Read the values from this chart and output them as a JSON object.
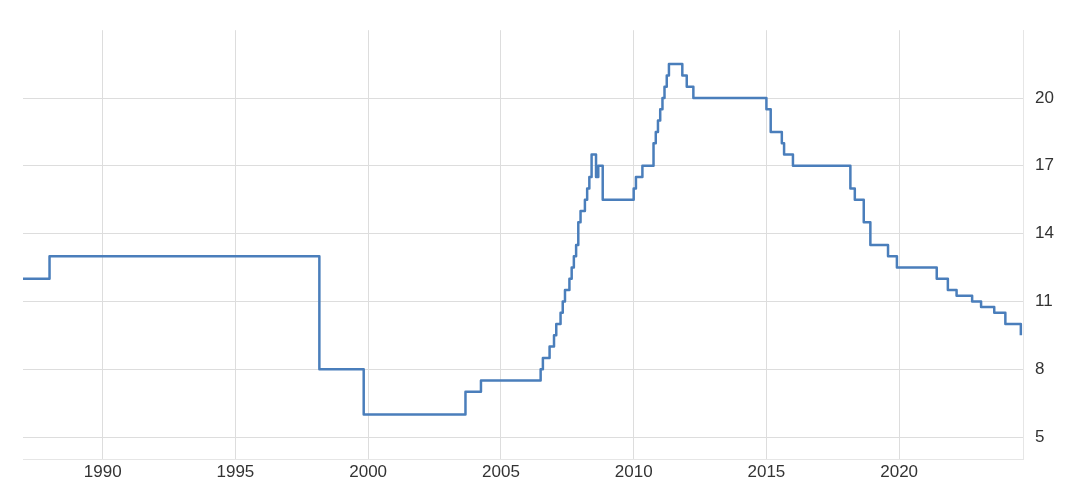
{
  "chart_data": {
    "type": "step",
    "x": [
      "1987-01",
      "1988-01",
      "1998-03",
      "1999-11",
      "2003-09",
      "2004-04",
      "2006-07",
      "2006-08",
      "2006-11",
      "2007-01",
      "2007-02",
      "2007-04",
      "2007-05",
      "2007-06",
      "2007-08",
      "2007-09",
      "2007-10",
      "2007-11",
      "2007-12",
      "2008-01",
      "2008-03",
      "2008-04",
      "2008-05",
      "2008-06",
      "2008-08",
      "2008-09",
      "2008-11",
      "2010-01",
      "2010-02",
      "2010-05",
      "2010-10",
      "2010-11",
      "2010-12",
      "2011-01",
      "2011-02",
      "2011-03",
      "2011-04",
      "2011-05",
      "2011-11",
      "2012-01",
      "2012-04",
      "2015-01",
      "2015-03",
      "2015-08",
      "2015-09",
      "2016-01",
      "2018-03",
      "2018-05",
      "2018-09",
      "2018-12",
      "2019-08",
      "2019-12",
      "2021-06",
      "2021-11",
      "2022-03",
      "2022-10",
      "2023-02",
      "2023-08",
      "2024-01",
      "2024-08"
    ],
    "series": [
      {
        "color": "#4a7ebb",
        "values": [
          12,
          13,
          8,
          6,
          7,
          7.5,
          8,
          8.5,
          9,
          9.5,
          10,
          10.5,
          11,
          11.5,
          12,
          12.5,
          13,
          13.5,
          14.5,
          15,
          15.5,
          16,
          16.5,
          17.5,
          16.5,
          17,
          15.5,
          16,
          16.5,
          17,
          18,
          18.5,
          19,
          19.5,
          20,
          20.5,
          21,
          21.5,
          21,
          20.5,
          20,
          19.5,
          18.5,
          18,
          17.5,
          17,
          16,
          15.5,
          14.5,
          13.5,
          13,
          12.5,
          12,
          11.5,
          11.25,
          11,
          10.75,
          10.5,
          10,
          9.5
        ]
      }
    ],
    "xlim": [
      "1987-01",
      "2024-09"
    ],
    "xticks": [
      "1990",
      "1995",
      "2000",
      "2005",
      "2010",
      "2015",
      "2020"
    ],
    "ylim": [
      4,
      23
    ],
    "yticks": [
      5,
      8,
      11,
      14,
      17,
      20
    ],
    "grid": true,
    "legend": false,
    "marker": "none",
    "line_style": "solid"
  }
}
